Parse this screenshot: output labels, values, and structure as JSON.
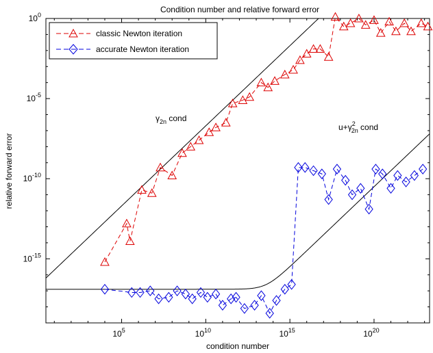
{
  "chart_data": {
    "type": "line",
    "title": "Condition number and relative forward error",
    "xlabel": "condition number",
    "ylabel": "relative forward error",
    "xscale": "log",
    "yscale": "log",
    "xlim_exp": [
      0.5,
      23.3
    ],
    "ylim_exp": [
      -19,
      0
    ],
    "grid": false,
    "legend_position": "top-left",
    "x_tick_labels": [
      {
        "base": "10",
        "exp": "5",
        "value": 5
      },
      {
        "base": "10",
        "exp": "10",
        "value": 10
      },
      {
        "base": "10",
        "exp": "15",
        "value": 15
      },
      {
        "base": "10",
        "exp": "20",
        "value": 20
      }
    ],
    "y_tick_labels": [
      {
        "base": "10",
        "exp": "0",
        "value": 0
      },
      {
        "base": "10",
        "exp": "-5",
        "value": -5
      },
      {
        "base": "10",
        "exp": "-10",
        "value": -10
      },
      {
        "base": "10",
        "exp": "-15",
        "value": -15
      }
    ],
    "series": [
      {
        "name": "classic Newton iteration",
        "color": "#dd0000",
        "marker": "triangle",
        "line_style": "dashed",
        "x_log10": [
          4.0,
          5.3,
          5.5,
          6.2,
          6.8,
          7.3,
          8.0,
          8.6,
          9.1,
          9.6,
          10.2,
          10.6,
          11.2,
          11.6,
          12.2,
          12.6,
          13.3,
          13.7,
          14.1,
          14.7,
          15.2,
          15.6,
          16.0,
          16.4,
          16.8,
          17.3,
          17.7,
          18.2,
          18.6,
          19.1,
          19.5,
          20.0,
          20.4,
          20.9,
          21.3,
          21.8,
          22.2,
          22.8,
          23.2
        ],
        "y_log10": [
          -15.2,
          -12.8,
          -13.9,
          -10.7,
          -10.9,
          -9.3,
          -9.8,
          -8.4,
          -8.0,
          -7.6,
          -7.1,
          -6.8,
          -6.5,
          -5.3,
          -5.1,
          -4.9,
          -4.0,
          -4.3,
          -3.9,
          -3.5,
          -3.2,
          -2.6,
          -2.2,
          -1.9,
          -1.9,
          -2.4,
          0.1,
          -0.5,
          -0.3,
          0.0,
          -0.4,
          -0.1,
          -0.9,
          -0.2,
          -0.8,
          -0.3,
          -0.8,
          -0.3,
          -0.5
        ]
      },
      {
        "name": "accurate Newton iteration",
        "color": "#0000dd",
        "marker": "diamond",
        "line_style": "dashed",
        "x_log10": [
          4.0,
          5.6,
          6.1,
          6.7,
          7.2,
          7.8,
          8.3,
          8.8,
          9.2,
          9.7,
          10.1,
          10.6,
          11.0,
          11.5,
          11.8,
          12.3,
          12.9,
          13.3,
          13.8,
          14.2,
          14.7,
          15.1,
          15.5,
          15.9,
          16.4,
          16.9,
          17.3,
          17.8,
          18.3,
          18.7,
          19.2,
          19.7,
          20.1,
          20.5,
          21.0,
          21.4,
          21.9,
          22.4,
          22.9
        ],
        "y_log10": [
          -16.9,
          -17.1,
          -17.1,
          -17.0,
          -17.5,
          -17.4,
          -17.0,
          -17.2,
          -17.5,
          -17.1,
          -17.4,
          -17.2,
          -17.9,
          -17.5,
          -17.4,
          -18.1,
          -17.9,
          -17.3,
          -18.4,
          -17.6,
          -16.9,
          -16.6,
          -9.3,
          -9.3,
          -9.5,
          -9.7,
          -11.3,
          -9.4,
          -10.1,
          -11.0,
          -10.6,
          -11.9,
          -9.4,
          -9.7,
          -10.6,
          -9.8,
          -10.2,
          -9.8,
          -9.4
        ]
      },
      {
        "name": "γ₂ₙ cond",
        "color": "#000000",
        "line_style": "solid",
        "x_log10_range": [
          0.5,
          23.3
        ],
        "y_log10": "x - 16.7"
      },
      {
        "name": "u+γ²₂ₙ cond",
        "color": "#000000",
        "line_style": "solid",
        "x_log10_range": [
          0.5,
          23.3
        ],
        "y_log10": "log10(1e-16.9 + 1e(x-30.5))"
      }
    ],
    "annotations": {
      "gamma_cond": {
        "sym": "γ",
        "sub": "2n",
        "text": " cond"
      },
      "u_gamma_cond": {
        "prefix": "u+γ",
        "sup": "2",
        "sub": "2n",
        "text": " cond"
      }
    }
  }
}
